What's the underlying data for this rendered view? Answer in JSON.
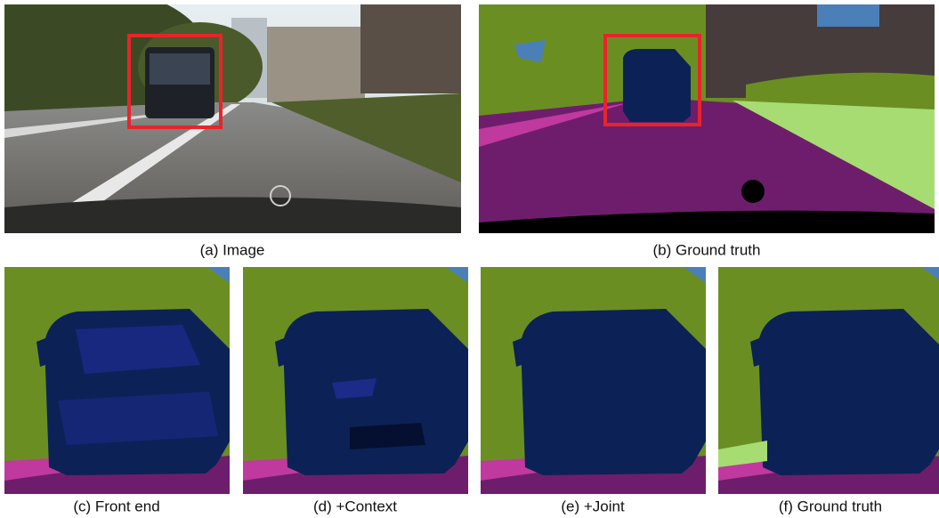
{
  "panels": [
    {
      "caption": "(a) Image"
    },
    {
      "caption": "(b) Ground truth"
    },
    {
      "caption": "(c) Front end"
    },
    {
      "caption": "(d) +Context"
    },
    {
      "caption": "(e) +Joint"
    },
    {
      "caption": "(f) Ground truth"
    }
  ]
}
